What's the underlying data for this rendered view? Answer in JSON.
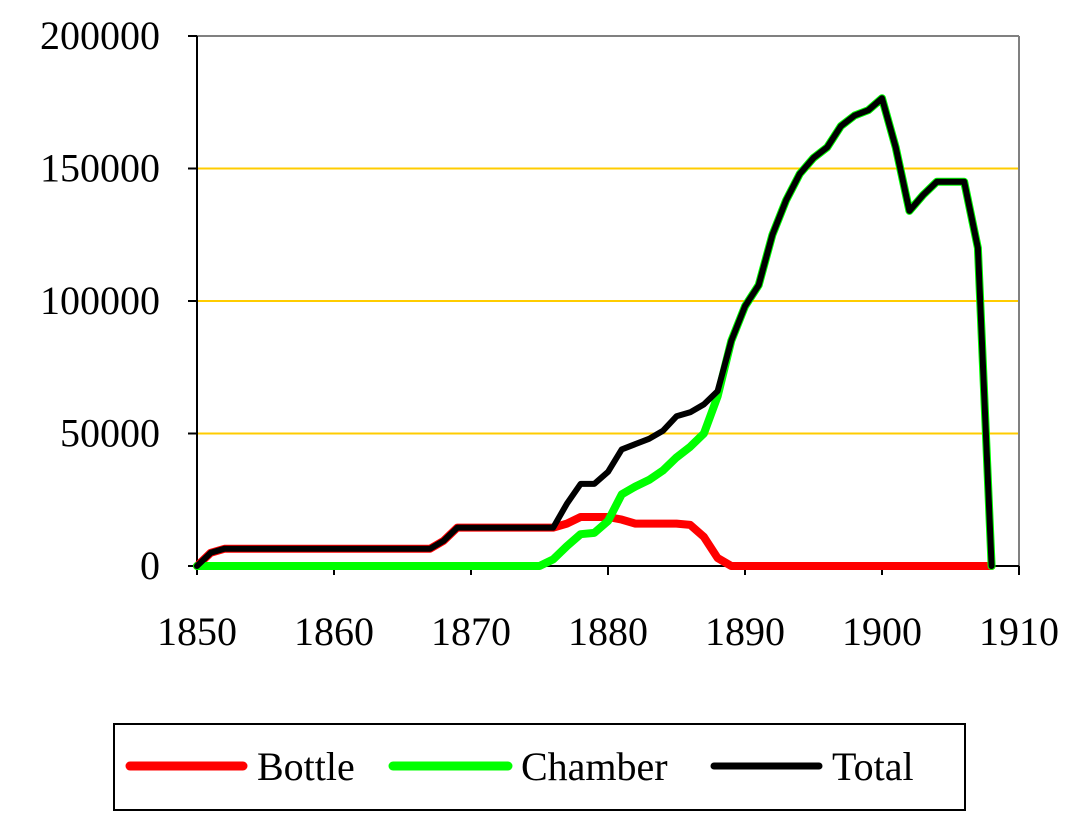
{
  "chart_data": {
    "type": "line",
    "title": "",
    "xlabel": "",
    "ylabel": "",
    "xlim": [
      1850,
      1910
    ],
    "ylim": [
      0,
      200000
    ],
    "x_ticks": [
      "1850",
      "1860",
      "1870",
      "1880",
      "1890",
      "1900",
      "1910"
    ],
    "y_ticks": [
      "0",
      "50000",
      "100000",
      "150000",
      "200000"
    ],
    "grid": "horizontal",
    "grid_color": "#FFCC00",
    "legend_position": "bottom",
    "legend": [
      "Bottle",
      "Chamber",
      "Total"
    ],
    "series": [
      {
        "name": "Bottle",
        "color": "#FF0000",
        "points": [
          [
            1850,
            0
          ],
          [
            1851,
            5000
          ],
          [
            1852,
            6500
          ],
          [
            1853,
            6500
          ],
          [
            1855,
            6500
          ],
          [
            1860,
            6500
          ],
          [
            1865,
            6500
          ],
          [
            1867,
            6500
          ],
          [
            1868,
            9500
          ],
          [
            1869,
            14500
          ],
          [
            1870,
            14500
          ],
          [
            1875,
            14500
          ],
          [
            1876,
            14500
          ],
          [
            1877,
            16000
          ],
          [
            1878,
            18500
          ],
          [
            1879,
            18500
          ],
          [
            1880,
            18500
          ],
          [
            1881,
            17500
          ],
          [
            1882,
            16000
          ],
          [
            1883,
            16000
          ],
          [
            1884,
            16000
          ],
          [
            1885,
            16000
          ],
          [
            1886,
            15500
          ],
          [
            1887,
            11000
          ],
          [
            1888,
            3000
          ],
          [
            1889,
            0
          ],
          [
            1890,
            0
          ],
          [
            1900,
            0
          ],
          [
            1907,
            0
          ],
          [
            1908,
            0
          ]
        ]
      },
      {
        "name": "Chamber",
        "color": "#00FF00",
        "points": [
          [
            1850,
            0
          ],
          [
            1855,
            0
          ],
          [
            1860,
            0
          ],
          [
            1865,
            0
          ],
          [
            1870,
            0
          ],
          [
            1875,
            0
          ],
          [
            1876,
            2500
          ],
          [
            1877,
            7500
          ],
          [
            1878,
            12000
          ],
          [
            1879,
            12500
          ],
          [
            1880,
            17000
          ],
          [
            1881,
            27000
          ],
          [
            1882,
            30000
          ],
          [
            1883,
            32500
          ],
          [
            1884,
            36000
          ],
          [
            1885,
            41000
          ],
          [
            1886,
            45000
          ],
          [
            1887,
            50000
          ],
          [
            1888,
            64000
          ],
          [
            1889,
            85000
          ],
          [
            1890,
            98000
          ],
          [
            1891,
            106000
          ],
          [
            1892,
            125000
          ],
          [
            1893,
            138000
          ],
          [
            1894,
            148000
          ],
          [
            1895,
            154000
          ],
          [
            1896,
            158000
          ],
          [
            1897,
            166000
          ],
          [
            1898,
            170000
          ],
          [
            1899,
            172000
          ],
          [
            1900,
            176500
          ],
          [
            1901,
            158000
          ],
          [
            1902,
            134000
          ],
          [
            1903,
            140000
          ],
          [
            1904,
            145000
          ],
          [
            1905,
            145000
          ],
          [
            1906,
            145000
          ],
          [
            1907,
            120000
          ],
          [
            1908,
            0
          ]
        ]
      },
      {
        "name": "Total",
        "color": "#000000",
        "points": [
          [
            1850,
            0
          ],
          [
            1851,
            5000
          ],
          [
            1852,
            6500
          ],
          [
            1853,
            6500
          ],
          [
            1855,
            6500
          ],
          [
            1860,
            6500
          ],
          [
            1865,
            6500
          ],
          [
            1867,
            6500
          ],
          [
            1868,
            9500
          ],
          [
            1869,
            14500
          ],
          [
            1870,
            14500
          ],
          [
            1875,
            14500
          ],
          [
            1876,
            14500
          ],
          [
            1877,
            23500
          ],
          [
            1878,
            31000
          ],
          [
            1879,
            31000
          ],
          [
            1880,
            35500
          ],
          [
            1881,
            44000
          ],
          [
            1882,
            46000
          ],
          [
            1883,
            48000
          ],
          [
            1884,
            51000
          ],
          [
            1885,
            56500
          ],
          [
            1886,
            58000
          ],
          [
            1887,
            61000
          ],
          [
            1888,
            66000
          ],
          [
            1889,
            85000
          ],
          [
            1890,
            98000
          ],
          [
            1891,
            106000
          ],
          [
            1892,
            125000
          ],
          [
            1893,
            138000
          ],
          [
            1894,
            148000
          ],
          [
            1895,
            154000
          ],
          [
            1896,
            158000
          ],
          [
            1897,
            166000
          ],
          [
            1898,
            170000
          ],
          [
            1899,
            172000
          ],
          [
            1900,
            176500
          ],
          [
            1901,
            158000
          ],
          [
            1902,
            134000
          ],
          [
            1903,
            140000
          ],
          [
            1904,
            145000
          ],
          [
            1905,
            145000
          ],
          [
            1906,
            145000
          ],
          [
            1907,
            120000
          ],
          [
            1908,
            0
          ]
        ]
      }
    ]
  }
}
